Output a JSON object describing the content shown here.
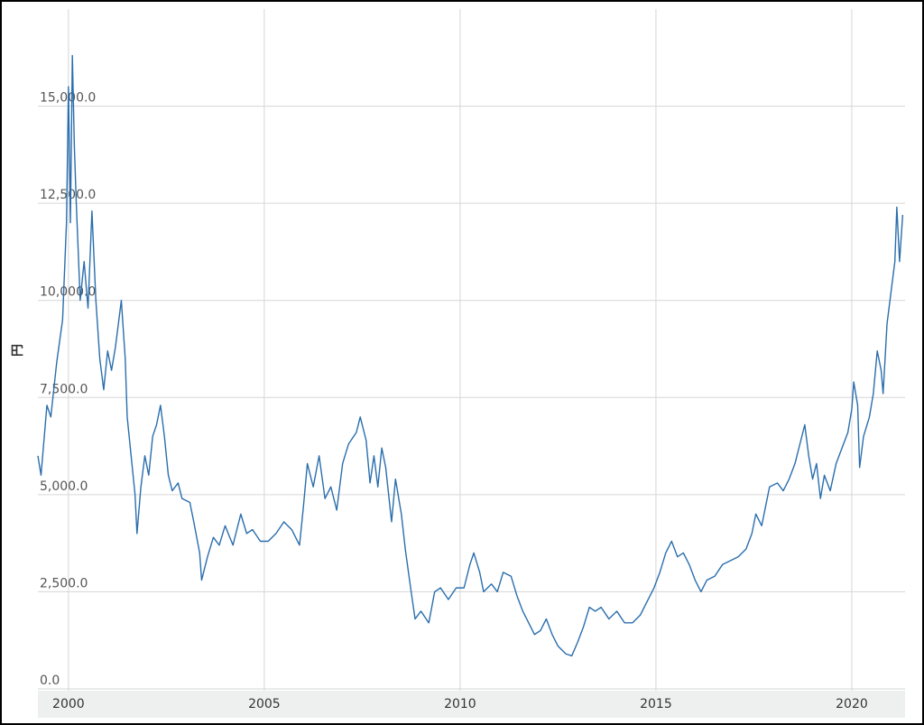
{
  "chart_data": {
    "type": "line",
    "y_label": "円",
    "color": "#2a6ead",
    "grid": true,
    "xlim": [
      1999.22,
      2021.36
    ],
    "xticks": [
      2000,
      2005,
      2010,
      2015,
      2020
    ],
    "ylim": [
      0,
      17500
    ],
    "yticks": [
      {
        "value": 0,
        "label": "0.0"
      },
      {
        "value": 2500,
        "label": "2,500.0"
      },
      {
        "value": 5000,
        "label": "5,000.0"
      },
      {
        "value": 7500,
        "label": "7,500.0"
      },
      {
        "value": 10000,
        "label": "10,000.0"
      },
      {
        "value": 12500,
        "label": "12,500.0"
      },
      {
        "value": 15000,
        "label": "15,000.0"
      }
    ],
    "x": [
      1999.22,
      1999.3,
      1999.45,
      1999.55,
      1999.7,
      1999.85,
      1999.95,
      2000.0,
      2000.05,
      2000.1,
      2000.15,
      2000.2,
      2000.3,
      2000.4,
      2000.5,
      2000.6,
      2000.7,
      2000.8,
      2000.9,
      2001.0,
      2001.1,
      2001.2,
      2001.35,
      2001.45,
      2001.5,
      2001.6,
      2001.7,
      2001.75,
      2001.85,
      2001.95,
      2002.05,
      2002.15,
      2002.25,
      2002.35,
      2002.45,
      2002.55,
      2002.65,
      2002.8,
      2002.9,
      2003.1,
      2003.2,
      2003.35,
      2003.4,
      2003.55,
      2003.7,
      2003.85,
      2004.0,
      2004.2,
      2004.4,
      2004.55,
      2004.7,
      2004.9,
      2005.1,
      2005.3,
      2005.5,
      2005.7,
      2005.9,
      2006.0,
      2006.1,
      2006.25,
      2006.4,
      2006.55,
      2006.7,
      2006.85,
      2007.0,
      2007.15,
      2007.35,
      2007.45,
      2007.6,
      2007.7,
      2007.8,
      2007.9,
      2008.0,
      2008.1,
      2008.25,
      2008.35,
      2008.5,
      2008.6,
      2008.75,
      2008.85,
      2009.0,
      2009.2,
      2009.35,
      2009.5,
      2009.7,
      2009.9,
      2010.1,
      2010.25,
      2010.35,
      2010.5,
      2010.6,
      2010.8,
      2010.95,
      2011.1,
      2011.3,
      2011.45,
      2011.6,
      2011.75,
      2011.9,
      2012.05,
      2012.2,
      2012.35,
      2012.5,
      2012.7,
      2012.85,
      2013.0,
      2013.15,
      2013.3,
      2013.45,
      2013.6,
      2013.8,
      2014.0,
      2014.2,
      2014.4,
      2014.6,
      2014.75,
      2014.95,
      2015.1,
      2015.25,
      2015.4,
      2015.55,
      2015.7,
      2015.85,
      2016.0,
      2016.15,
      2016.3,
      2016.5,
      2016.7,
      2016.9,
      2017.1,
      2017.3,
      2017.45,
      2017.55,
      2017.7,
      2017.8,
      2017.9,
      2018.1,
      2018.25,
      2018.4,
      2018.55,
      2018.7,
      2018.8,
      2018.9,
      2019.0,
      2019.1,
      2019.2,
      2019.3,
      2019.45,
      2019.6,
      2019.75,
      2019.9,
      2020.0,
      2020.05,
      2020.15,
      2020.2,
      2020.3,
      2020.45,
      2020.55,
      2020.65,
      2020.75,
      2020.8,
      2020.9,
      2021.0,
      2021.1,
      2021.15,
      2021.22,
      2021.3
    ],
    "values": [
      6000,
      5500,
      7300,
      7000,
      8400,
      9500,
      12000,
      15500,
      12000,
      16300,
      14000,
      12500,
      10000,
      11000,
      9800,
      12300,
      10000,
      8500,
      7700,
      8700,
      8200,
      8800,
      10000,
      8500,
      7000,
      6000,
      5000,
      4000,
      5200,
      6000,
      5500,
      6500,
      6800,
      7300,
      6500,
      5500,
      5100,
      5300,
      4900,
      4800,
      4300,
      3500,
      2800,
      3400,
      3900,
      3700,
      4200,
      3700,
      4500,
      4000,
      4100,
      3800,
      3800,
      4000,
      4300,
      4100,
      3700,
      4700,
      5800,
      5200,
      6000,
      4900,
      5200,
      4600,
      5800,
      6300,
      6600,
      7000,
      6400,
      5300,
      6000,
      5200,
      6200,
      5700,
      4300,
      5400,
      4500,
      3600,
      2500,
      1800,
      2000,
      1700,
      2500,
      2600,
      2300,
      2600,
      2600,
      3200,
      3500,
      3000,
      2500,
      2700,
      2500,
      3000,
      2900,
      2400,
      2000,
      1700,
      1400,
      1500,
      1800,
      1400,
      1100,
      900,
      850,
      1200,
      1600,
      2100,
      2000,
      2100,
      1800,
      2000,
      1700,
      1700,
      1900,
      2200,
      2600,
      3000,
      3500,
      3800,
      3400,
      3500,
      3200,
      2800,
      2500,
      2800,
      2900,
      3200,
      3300,
      3400,
      3600,
      4000,
      4500,
      4200,
      4700,
      5200,
      5300,
      5100,
      5400,
      5800,
      6400,
      6800,
      6000,
      5400,
      5800,
      4900,
      5500,
      5100,
      5800,
      6200,
      6600,
      7200,
      7900,
      7300,
      5700,
      6500,
      7000,
      7600,
      8700,
      8200,
      7600,
      9400,
      10200,
      11000,
      12400,
      11000,
      12200
    ]
  }
}
